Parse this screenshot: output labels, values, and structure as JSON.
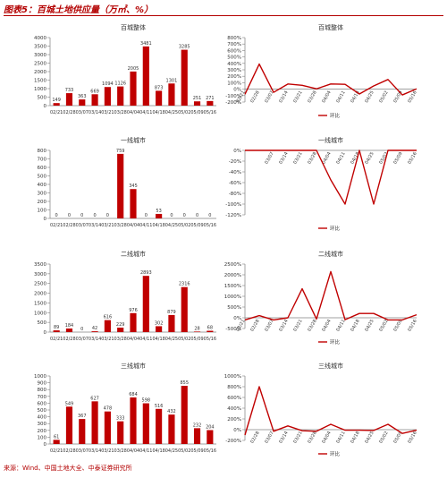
{
  "header": {
    "title": "图表5：百城土地供应量（万㎡、%）",
    "source": "来源：Wind、中国土地大全、中泰证券研究所"
  },
  "colors": {
    "accent": "#c00000",
    "axis": "#808080",
    "text": "#333333"
  },
  "chart_data": [
    {
      "type": "bar",
      "title": "百城整体",
      "categories": [
        "02/21",
        "02/28",
        "03/07",
        "03/14",
        "03/21",
        "03/28",
        "04/04",
        "04/11",
        "04/18",
        "04/25",
        "05/02",
        "05/09",
        "05/16"
      ],
      "values": [
        149,
        733,
        363,
        669,
        1094,
        1126,
        2005,
        3481,
        873,
        1301,
        3285,
        251,
        271
      ],
      "ylim": [
        0,
        4000
      ],
      "ytick_step": 500
    },
    {
      "type": "line",
      "title": "百城整体",
      "legend": [
        "环比"
      ],
      "categories": [
        "02/21",
        "02/28",
        "03/07",
        "03/14",
        "03/21",
        "03/28",
        "04/04",
        "04/11",
        "04/18",
        "04/25",
        "05/02",
        "05/09",
        "05/16"
      ],
      "xtick_labels": [
        "02/21",
        "02/28",
        "03/07",
        "03/14",
        "03/21",
        "03/28",
        "04/04",
        "04/11",
        "04/18",
        "04/25",
        "05/02",
        "05/09",
        "05/16"
      ],
      "values": [
        -80,
        390,
        -50,
        80,
        60,
        5,
        80,
        75,
        -75,
        50,
        150,
        -90,
        5
      ],
      "ylim": [
        -200,
        800
      ],
      "ytick_step": 100
    },
    {
      "type": "bar",
      "title": "一线城市",
      "categories": [
        "02/21",
        "02/28",
        "03/07",
        "03/14",
        "03/21",
        "03/28",
        "04/04",
        "04/11",
        "04/18",
        "04/25",
        "05/02",
        "05/09",
        "05/16"
      ],
      "values": [
        0,
        0,
        0,
        0,
        0,
        759,
        345,
        0,
        53,
        0,
        0,
        0,
        0
      ],
      "ylim": [
        0,
        800
      ],
      "ytick_step": 100
    },
    {
      "type": "line",
      "title": "一线城市",
      "legend": [
        "环比"
      ],
      "categories": [
        "02/21",
        "02/28",
        "03/07",
        "03/14",
        "03/21",
        "03/28",
        "04/04",
        "04/11",
        "04/18",
        "04/25",
        "05/02",
        "05/09",
        "05/16"
      ],
      "xtick_labels": [
        "",
        "",
        "03/07",
        "03/14",
        "03/21",
        "03/28",
        "04/04",
        "04/11",
        "04/18",
        "04/25",
        "05/02",
        "05/09",
        "05/16"
      ],
      "values": [
        0,
        0,
        0,
        0,
        0,
        0,
        -55,
        -100,
        0,
        -100,
        0,
        0,
        0
      ],
      "ylim": [
        -120,
        0
      ],
      "ytick_step": 20
    },
    {
      "type": "bar",
      "title": "二线城市",
      "categories": [
        "02/21",
        "02/28",
        "03/07",
        "03/14",
        "03/21",
        "03/28",
        "04/04",
        "04/11",
        "04/18",
        "04/25",
        "05/02",
        "05/09",
        "05/16"
      ],
      "values": [
        89,
        184,
        0,
        42,
        616,
        229,
        976,
        2893,
        302,
        879,
        2316,
        28,
        68
      ],
      "ylim": [
        0,
        3500
      ],
      "ytick_step": 500
    },
    {
      "type": "line",
      "title": "二线城市",
      "legend": [
        "环比"
      ],
      "categories": [
        "02/21",
        "02/28",
        "03/07",
        "03/14",
        "03/21",
        "03/28",
        "04/04",
        "04/11",
        "04/18",
        "04/25",
        "05/02",
        "05/09",
        "05/16"
      ],
      "xtick_labels": [
        "02/21",
        "02/28",
        "03/07",
        "03/14",
        "03/21",
        "03/28",
        "04/04",
        "04/11",
        "04/18",
        "04/25",
        "05/02",
        "05/09",
        "05/16"
      ],
      "values": [
        -100,
        100,
        -100,
        0,
        1350,
        -60,
        2150,
        -90,
        200,
        200,
        -100,
        -100,
        140
      ],
      "ylim": [
        -500,
        2500
      ],
      "ytick_step": 500
    },
    {
      "type": "bar",
      "title": "三线城市",
      "categories": [
        "02/21",
        "02/28",
        "03/07",
        "03/14",
        "03/21",
        "03/28",
        "04/04",
        "04/11",
        "04/18",
        "04/25",
        "05/02",
        "05/09",
        "05/16"
      ],
      "values": [
        61,
        549,
        367,
        627,
        478,
        333,
        684,
        598,
        516,
        432,
        855,
        232,
        204
      ],
      "ylim": [
        0,
        1000
      ],
      "ytick_step": 100
    },
    {
      "type": "line",
      "title": "三线城市",
      "legend": [
        "环比"
      ],
      "categories": [
        "02/21",
        "02/28",
        "03/07",
        "03/14",
        "03/21",
        "03/28",
        "04/04",
        "04/11",
        "04/18",
        "04/25",
        "05/02",
        "05/09",
        "05/16"
      ],
      "xtick_labels": [
        "",
        "02/28",
        "03/07",
        "03/14",
        "03/21",
        "03/28",
        "04/04",
        "04/11",
        "04/18",
        "04/25",
        "05/02",
        "05/09",
        "05/16"
      ],
      "values": [
        -100,
        800,
        -30,
        70,
        -20,
        -30,
        100,
        -10,
        -10,
        -15,
        100,
        -70,
        -10
      ],
      "ylim": [
        -200,
        1000
      ],
      "ytick_step": 200
    }
  ]
}
